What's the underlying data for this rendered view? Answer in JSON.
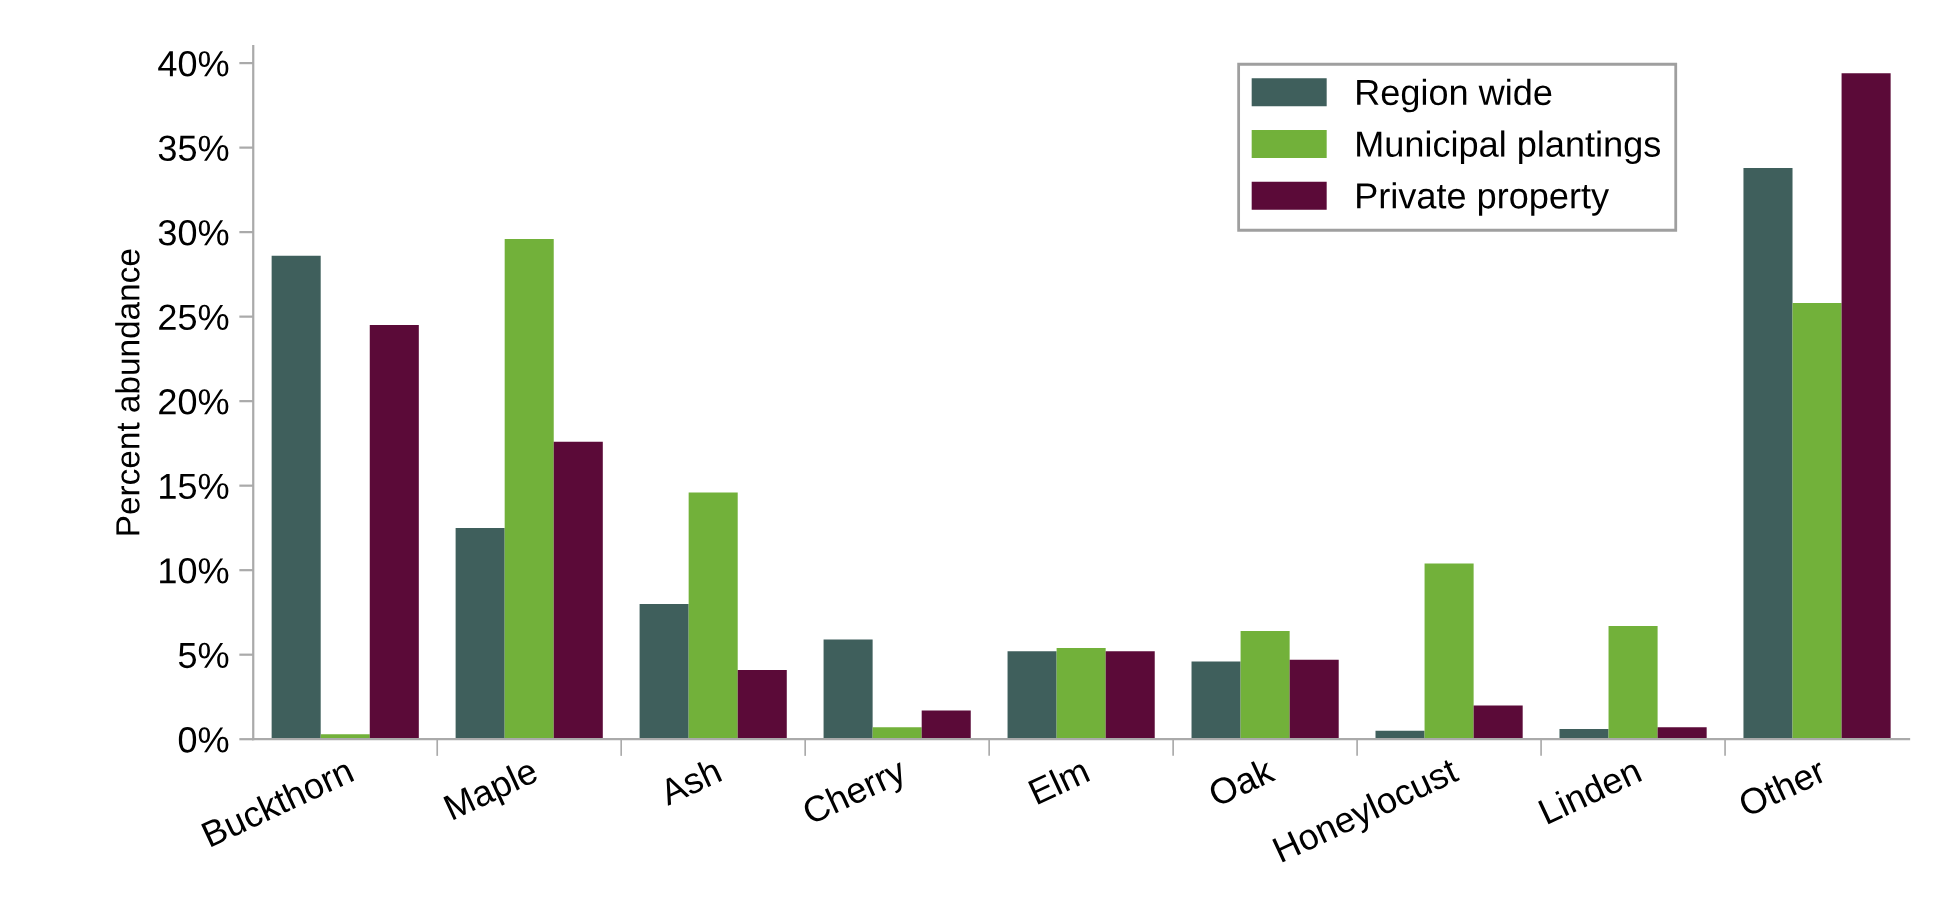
{
  "chart_data": {
    "type": "bar",
    "ylabel": "Percent abundance",
    "categories": [
      "Buckthorn",
      "Maple",
      "Ash",
      "Cherry",
      "Elm",
      "Oak",
      "Honeylocust",
      "Linden",
      "Other"
    ],
    "series": [
      {
        "name": "Region wide",
        "color": "#3f5f5c",
        "values": [
          28.6,
          12.5,
          8.0,
          5.9,
          5.2,
          4.6,
          0.5,
          0.6,
          33.8
        ]
      },
      {
        "name": "Municipal plantings",
        "color": "#72b13a",
        "values": [
          0.3,
          29.6,
          14.6,
          0.7,
          5.4,
          6.4,
          10.4,
          6.7,
          25.8
        ]
      },
      {
        "name": "Private property",
        "color": "#5b0a38",
        "values": [
          24.5,
          17.6,
          4.1,
          1.7,
          5.2,
          4.7,
          2.0,
          0.7,
          39.4
        ]
      }
    ],
    "ylim": [
      0,
      41
    ],
    "yticks": [
      {
        "value": 0,
        "label": "0%"
      },
      {
        "value": 5,
        "label": "5%"
      },
      {
        "value": 10,
        "label": "10%"
      },
      {
        "value": 15,
        "label": "15%"
      },
      {
        "value": 20,
        "label": "20%"
      },
      {
        "value": 25,
        "label": "25%"
      },
      {
        "value": 30,
        "label": "30%"
      },
      {
        "value": 35,
        "label": "35%"
      },
      {
        "value": 40,
        "label": "40%"
      }
    ],
    "grid": false,
    "legend": "top right"
  }
}
